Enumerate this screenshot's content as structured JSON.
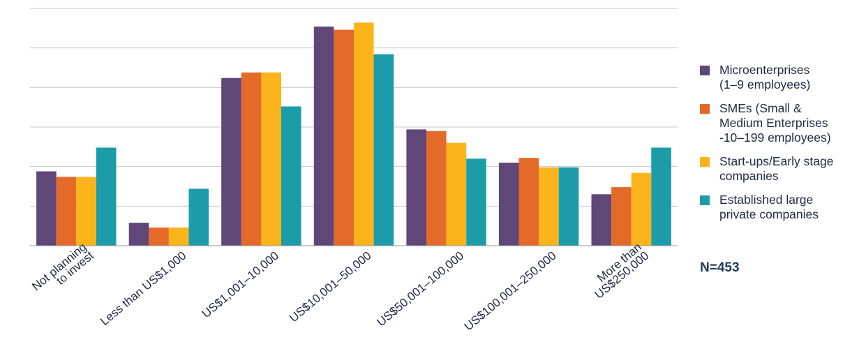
{
  "chart_data": {
    "type": "bar",
    "title": "",
    "xlabel": "",
    "ylabel": "",
    "ylim": [
      0,
      30
    ],
    "grid": true,
    "legend_position": "right",
    "categories": [
      "Not planning\nto invest",
      "Less than US$1,000",
      "US$1,001–10,000",
      "US$10,001–50,000",
      "US$50,001–100,000",
      "US$100,001–250,000",
      "More than\nUS$250,000"
    ],
    "series": [
      {
        "name": "Microenterprises\n(1–9 employees)",
        "color": "#5f4778",
        "values": [
          9.4,
          2.9,
          21.2,
          27.7,
          14.7,
          10.5,
          6.5
        ]
      },
      {
        "name": "SMEs (Small &\nMedium Enterprises\n-10–199 employees)",
        "color": "#e46a2a",
        "values": [
          8.7,
          2.3,
          21.9,
          27.3,
          14.5,
          11.1,
          7.4
        ]
      },
      {
        "name": "Start-ups/Early stage\ncompanies",
        "color": "#fbb41a",
        "values": [
          8.7,
          2.3,
          21.9,
          28.2,
          13.0,
          9.9,
          9.2
        ]
      },
      {
        "name": "Established large\nprivate companies",
        "color": "#1b9ca8",
        "values": [
          12.4,
          7.2,
          17.6,
          24.2,
          11.0,
          9.9,
          12.4
        ]
      }
    ]
  },
  "note": "N=453"
}
